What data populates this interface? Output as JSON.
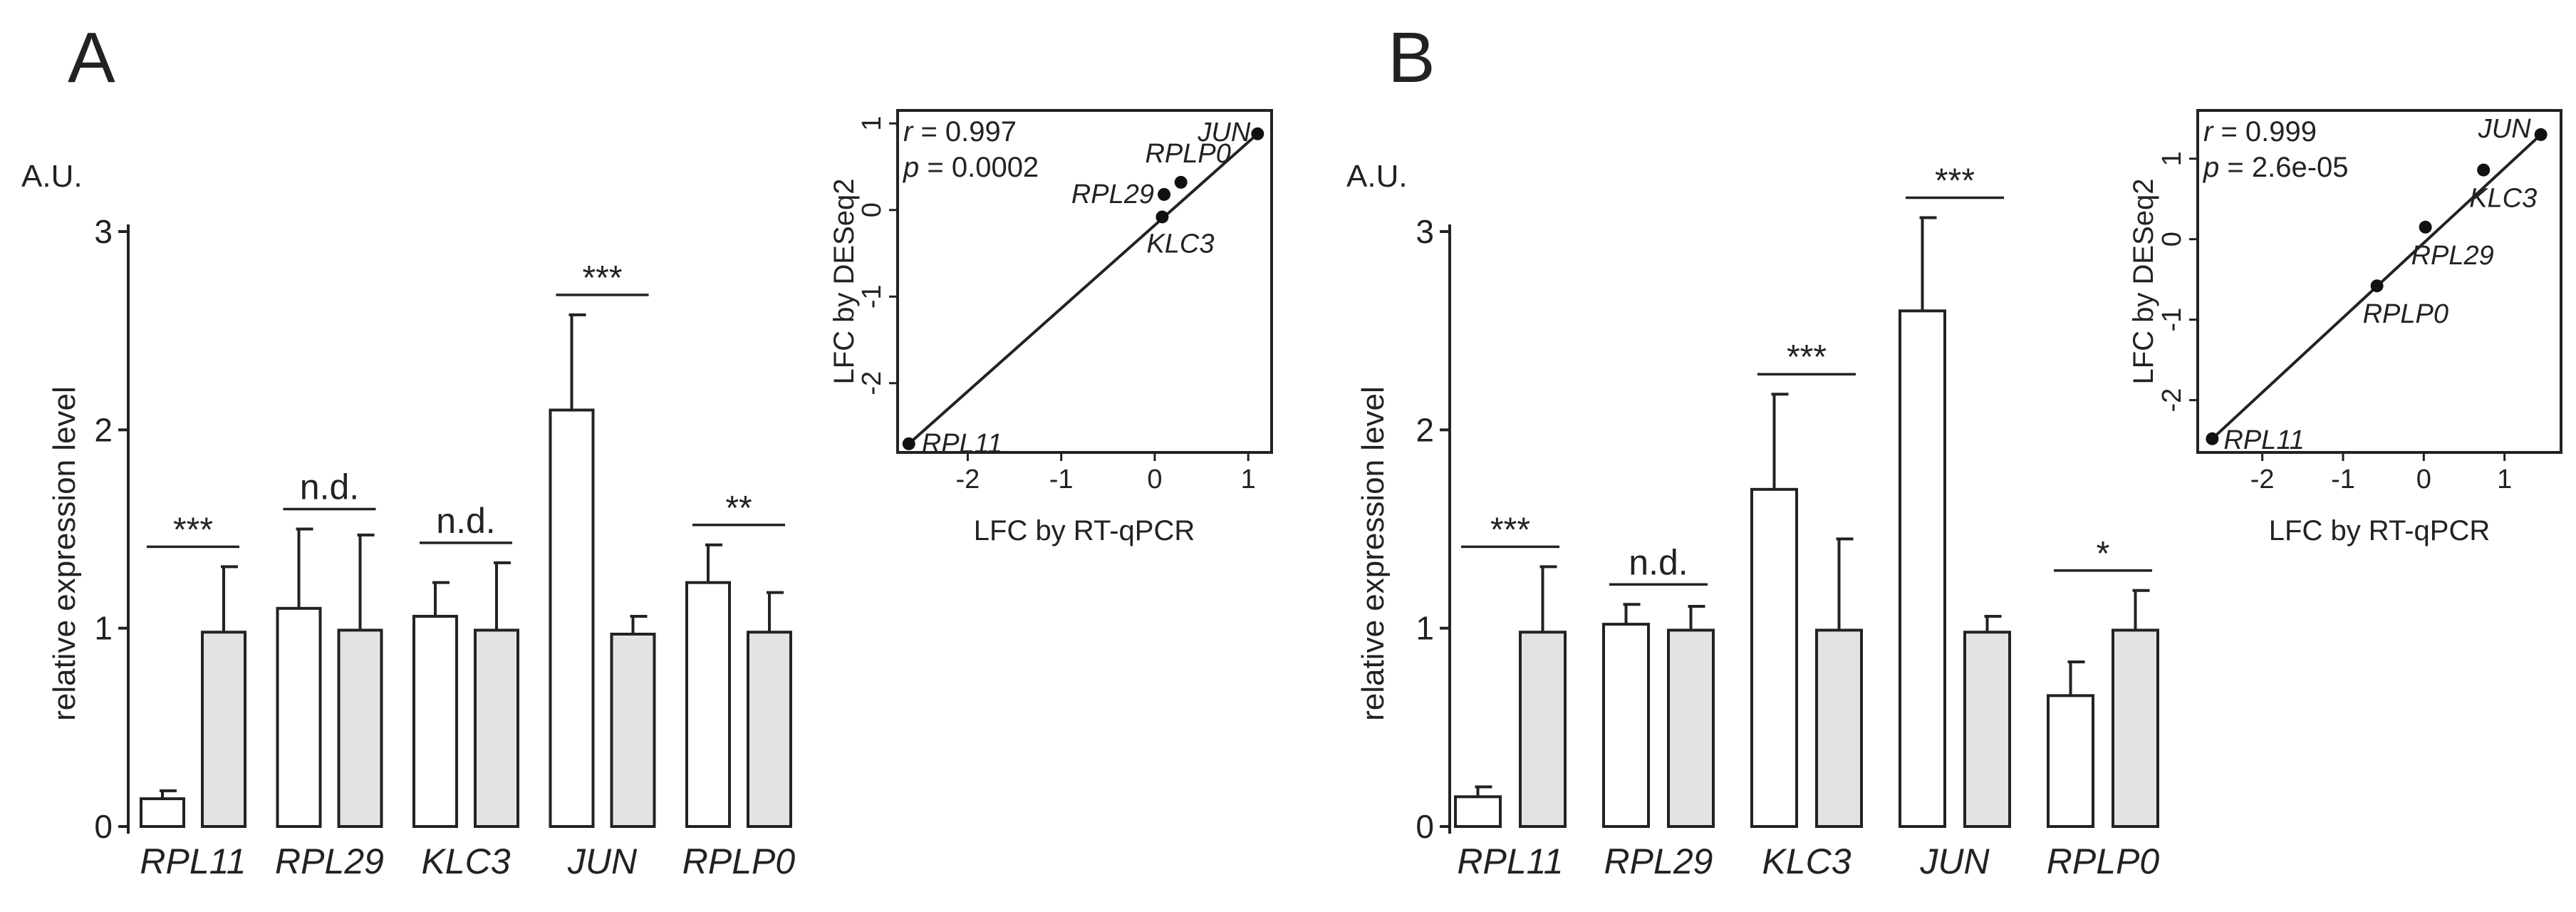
{
  "panels": [
    {
      "letter": "A",
      "yunit": "A.U.",
      "chart_data": {
        "type": "bar",
        "ylabel": "relative expression level",
        "xlabel": "",
        "ylim": [
          0,
          3
        ],
        "yticks": [
          0,
          1,
          2,
          3
        ],
        "categories": [
          "RPL11",
          "RPL29",
          "KLC3",
          "JUN",
          "RPLP0"
        ],
        "series": [
          {
            "color": "#ffffff",
            "values": [
              0.14,
              1.1,
              1.06,
              2.1,
              1.23
            ],
            "errors": [
              0.04,
              0.4,
              0.17,
              0.48,
              0.19
            ]
          },
          {
            "color": "#e3e3e3",
            "values": [
              0.98,
              0.99,
              0.99,
              0.97,
              0.98
            ],
            "errors": [
              0.33,
              0.48,
              0.34,
              0.09,
              0.2
            ]
          }
        ],
        "significance": [
          "***",
          "n.d.",
          "n.d.",
          "***",
          "**"
        ]
      },
      "inset": {
        "type": "scatter",
        "xlabel": "LFC by RT-qPCR",
        "ylabel": "LFC by DESeq2",
        "xlim": [
          -2.75,
          1.25
        ],
        "ylim": [
          -2.8,
          1.15
        ],
        "xticks": [
          -2,
          -1,
          0,
          1
        ],
        "yticks": [
          -2,
          -1,
          0,
          1
        ],
        "r_label": "r",
        "r_value": " = 0.997",
        "p_label": "p",
        "p_value": " = 0.0002",
        "fit": [
          [
            -2.63,
            -2.7
          ],
          [
            1.1,
            0.88
          ]
        ],
        "points": [
          {
            "label": "RPL11",
            "x": -2.63,
            "y": -2.7
          },
          {
            "label": "RPL29",
            "x": 0.1,
            "y": 0.18
          },
          {
            "label": "KLC3",
            "x": 0.08,
            "y": -0.08
          },
          {
            "label": "JUN",
            "x": 1.1,
            "y": 0.88
          },
          {
            "label": "RPLP0",
            "x": 0.28,
            "y": 0.32
          }
        ]
      }
    },
    {
      "letter": "B",
      "yunit": "A.U.",
      "chart_data": {
        "type": "bar",
        "ylabel": "relative expression level",
        "xlabel": "",
        "ylim": [
          0,
          3
        ],
        "yticks": [
          0,
          1,
          2,
          3
        ],
        "categories": [
          "RPL11",
          "RPL29",
          "KLC3",
          "JUN",
          "RPLP0"
        ],
        "series": [
          {
            "color": "#ffffff",
            "values": [
              0.15,
              1.02,
              1.7,
              2.6,
              0.66
            ],
            "errors": [
              0.05,
              0.1,
              0.48,
              0.47,
              0.17
            ]
          },
          {
            "color": "#e3e3e3",
            "values": [
              0.98,
              0.99,
              0.99,
              0.98,
              0.99
            ],
            "errors": [
              0.33,
              0.12,
              0.46,
              0.08,
              0.2
            ]
          }
        ],
        "significance": [
          "***",
          "n.d.",
          "***",
          "***",
          "*"
        ]
      },
      "inset": {
        "type": "scatter",
        "xlabel": "LFC by RT-qPCR",
        "ylabel": "LFC by DESeq2",
        "xlim": [
          -2.8,
          1.7
        ],
        "ylim": [
          -2.65,
          1.6
        ],
        "xticks": [
          -2,
          -1,
          0,
          1
        ],
        "yticks": [
          -2,
          -1,
          0,
          1
        ],
        "r_label": "r",
        "r_value": " = 0.999",
        "p_label": "p",
        "p_value": " = 2.6e-05",
        "fit": [
          [
            -2.62,
            -2.48
          ],
          [
            1.45,
            1.3
          ]
        ],
        "points": [
          {
            "label": "RPL11",
            "x": -2.62,
            "y": -2.48
          },
          {
            "label": "RPLP0",
            "x": -0.58,
            "y": -0.58
          },
          {
            "label": "RPL29",
            "x": 0.02,
            "y": 0.15
          },
          {
            "label": "KLC3",
            "x": 0.74,
            "y": 0.86
          },
          {
            "label": "JUN",
            "x": 1.45,
            "y": 1.3
          }
        ]
      }
    }
  ]
}
